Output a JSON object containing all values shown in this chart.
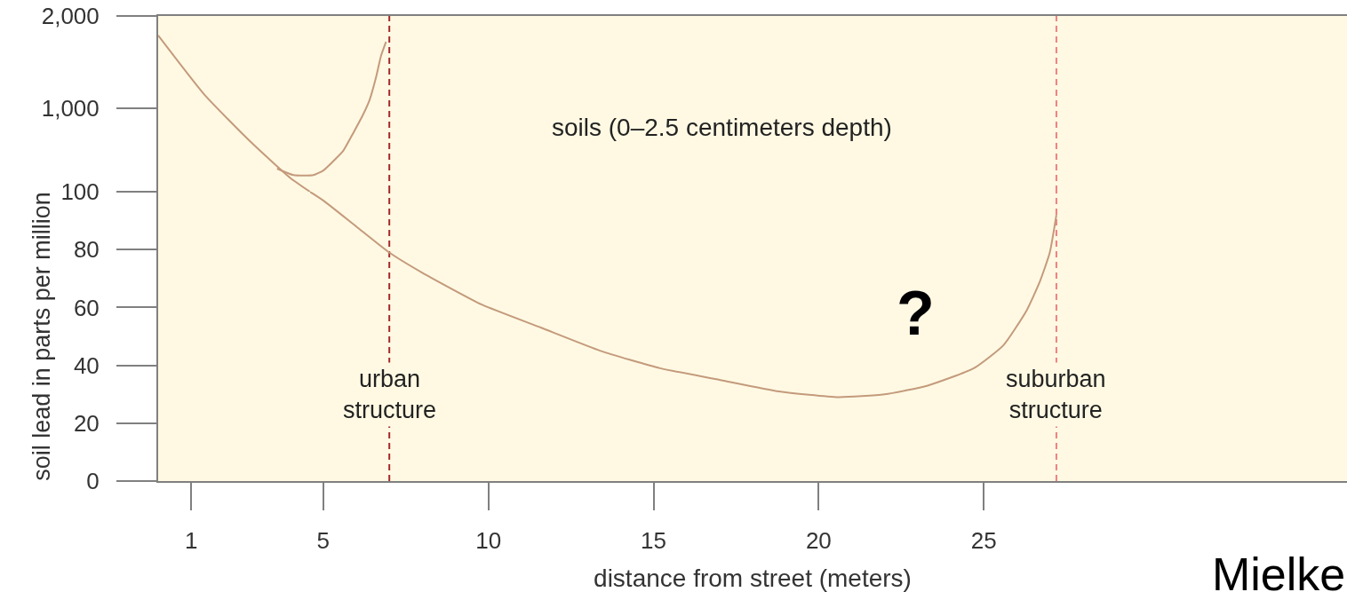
{
  "chart_data": [
    {
      "type": "line",
      "annotations": [
        "soils (0–2.5 centimeters depth)"
      ],
      "series": [
        {
          "color": "#c49a7c",
          "x": [
            0,
            1.4,
            2.8,
            4.0,
            4.6
          ],
          "values": [
            1790,
            1150,
            640,
            250,
            100
          ]
        },
        {
          "color": "#c49a7c",
          "x": [
            3.6,
            4.1,
            4.7,
            5,
            5.3,
            5.6,
            5.9,
            6.2,
            6.4,
            6.6,
            6.75,
            6.9
          ],
          "values": [
            350,
            280,
            280,
            330,
            430,
            540,
            730,
            930,
            1090,
            1340,
            1570,
            1720
          ]
        }
      ],
      "xlim": [
        0,
        36
      ],
      "ylim": [
        100,
        2000
      ],
      "yticks": [
        {
          "value": 100,
          "label": null
        },
        {
          "value": 1000,
          "label": "1,000"
        },
        {
          "value": 2000,
          "label": "2,000"
        }
      ],
      "tick_labels": "y",
      "ref_lines": [
        {
          "axis": "x",
          "value": 7,
          "color": "#a52a2a",
          "line_style": "dashed"
        },
        {
          "axis": "x",
          "value": 27.2,
          "color": "#f08080",
          "line_style": "dashed"
        }
      ]
    },
    {
      "type": "line",
      "xlabel": "distance from street (meters)",
      "ylabel": "soil lead in parts per million",
      "annotations": [
        "?",
        "Mielke"
      ],
      "series": [
        {
          "color": "#c49a7c",
          "x": [
            4.6,
            5,
            6,
            7,
            8,
            9.8,
            11.6,
            13.4,
            15.2,
            17,
            18.8,
            20.6,
            22,
            23.3,
            24.7,
            25.6,
            26.3,
            26.7,
            27,
            27.2
          ],
          "values": [
            100,
            97,
            88,
            79,
            72,
            61,
            53,
            45,
            39,
            35,
            31,
            29,
            30,
            33,
            39,
            47,
            59,
            69,
            79,
            92
          ]
        }
      ],
      "xlim": [
        0,
        36
      ],
      "xticks": [
        1,
        5,
        10,
        15,
        20,
        25
      ],
      "ylim": [
        0,
        100
      ],
      "yticks": [
        0,
        20,
        40,
        60,
        80,
        100
      ],
      "ref_lines": [
        {
          "axis": "x",
          "value": 7,
          "label": "urban\nstructure",
          "color": "#a52a2a",
          "line_style": "dashed"
        },
        {
          "axis": "x",
          "value": 27.2,
          "label": "suburban\nstructure",
          "color": "#f08080",
          "line_style": "dashed"
        }
      ]
    }
  ]
}
